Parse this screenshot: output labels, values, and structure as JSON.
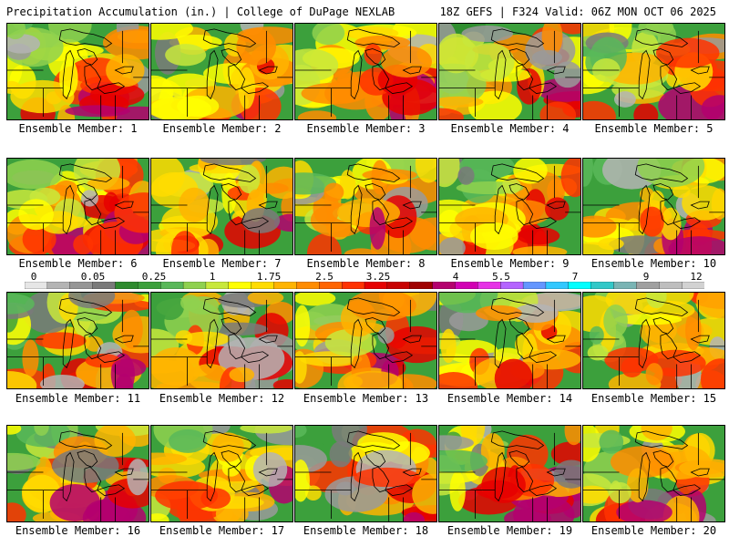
{
  "header": {
    "title_left": "Precipitation Accumulation (in.) | College of DuPage NEXLAB",
    "title_right": "18Z GEFS | F324 Valid: 06Z MON OCT 06 2025"
  },
  "panels": [
    {
      "caption": "Ensemble Member: 1"
    },
    {
      "caption": "Ensemble Member: 2"
    },
    {
      "caption": "Ensemble Member: 3"
    },
    {
      "caption": "Ensemble Member: 4"
    },
    {
      "caption": "Ensemble Member: 5"
    },
    {
      "caption": "Ensemble Member: 6"
    },
    {
      "caption": "Ensemble Member: 7"
    },
    {
      "caption": "Ensemble Member: 8"
    },
    {
      "caption": "Ensemble Member: 9"
    },
    {
      "caption": "Ensemble Member: 10"
    },
    {
      "caption": "Ensemble Member: 11"
    },
    {
      "caption": "Ensemble Member: 12"
    },
    {
      "caption": "Ensemble Member: 13"
    },
    {
      "caption": "Ensemble Member: 14"
    },
    {
      "caption": "Ensemble Member: 15"
    },
    {
      "caption": "Ensemble Member: 16"
    },
    {
      "caption": "Ensemble Member: 17"
    },
    {
      "caption": "Ensemble Member: 18"
    },
    {
      "caption": "Ensemble Member: 19"
    },
    {
      "caption": "Ensemble Member: 20"
    }
  ],
  "colorbar": {
    "labels": [
      "0",
      "0.05",
      "0.25",
      "1",
      "1.75",
      "2.5",
      "3.25",
      "4",
      "5.5",
      "7",
      "9",
      "12"
    ],
    "colors": [
      "#e6e6e6",
      "#b4b4b4",
      "#969696",
      "#7a7a7a",
      "#2e8b2e",
      "#3ca03c",
      "#59b859",
      "#8fd14f",
      "#c8e83c",
      "#ffff00",
      "#ffdc00",
      "#ffb400",
      "#ff8c00",
      "#ff6400",
      "#ff3200",
      "#e60000",
      "#c80000",
      "#a00000",
      "#b4006e",
      "#d200b4",
      "#e632e6",
      "#b464ff",
      "#6496ff",
      "#32c8ff",
      "#00ffff",
      "#32c8c8",
      "#7ab4b4",
      "#a0a0a0",
      "#bebebe",
      "#d2d2d2"
    ]
  }
}
